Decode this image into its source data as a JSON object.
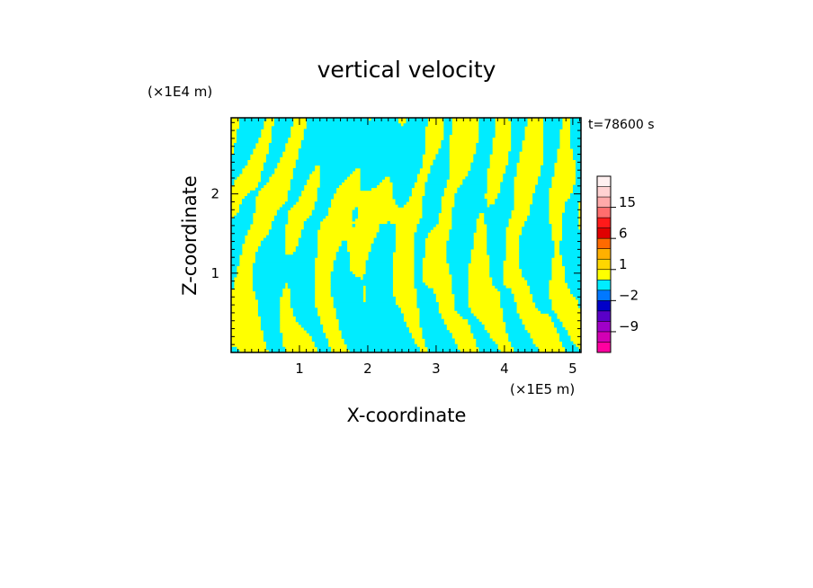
{
  "chart_data": {
    "type": "heatmap",
    "title": "vertical velocity",
    "xlabel": "X-coordinate",
    "ylabel": "Z-coordinate",
    "x_unit": "(×1E5 m)",
    "y_unit": "(×1E4 m)",
    "time_label": "t=78600 s",
    "xlim": [
      0,
      5.12
    ],
    "ylim": [
      0,
      2.96
    ],
    "x_ticks": [
      1,
      2,
      3,
      4,
      5
    ],
    "x_tick_labels": [
      "1",
      "2",
      "3",
      "4",
      "5"
    ],
    "y_ticks": [
      1,
      2
    ],
    "y_tick_labels": [
      "1",
      "2"
    ],
    "fill_colors": {
      "positive": "#ffff00",
      "negative": "#00ecff"
    },
    "colorbar": {
      "tick_labels": [
        "15",
        "6",
        "1",
        "−2",
        "−9"
      ],
      "tick_values": [
        15,
        6,
        1,
        -2,
        -9
      ],
      "levels": [
        {
          "from": 21,
          "to": 99,
          "color": "#fff0f0"
        },
        {
          "from": 18,
          "to": 21,
          "color": "#ffd2d2"
        },
        {
          "from": 15,
          "to": 18,
          "color": "#ffaaaa"
        },
        {
          "from": 12,
          "to": 15,
          "color": "#ff6e6e"
        },
        {
          "from": 9,
          "to": 12,
          "color": "#ff1a1a"
        },
        {
          "from": 6,
          "to": 9,
          "color": "#e00000"
        },
        {
          "from": 3,
          "to": 6,
          "color": "#ff6a00"
        },
        {
          "from": 2,
          "to": 3,
          "color": "#ffb000"
        },
        {
          "from": 1,
          "to": 2,
          "color": "#ffd700"
        },
        {
          "from": 0,
          "to": 1,
          "color": "#ffff00"
        },
        {
          "from": -1,
          "to": 0,
          "color": "#00ecff"
        },
        {
          "from": -2,
          "to": -1,
          "color": "#0078ff"
        },
        {
          "from": -3,
          "to": -2,
          "color": "#0000c8"
        },
        {
          "from": -6,
          "to": -3,
          "color": "#5a00c8"
        },
        {
          "from": -9,
          "to": -6,
          "color": "#a000c8"
        },
        {
          "from": -12,
          "to": -9,
          "color": "#d200b4"
        },
        {
          "from": -99,
          "to": -12,
          "color": "#ff00a0"
        }
      ]
    }
  }
}
